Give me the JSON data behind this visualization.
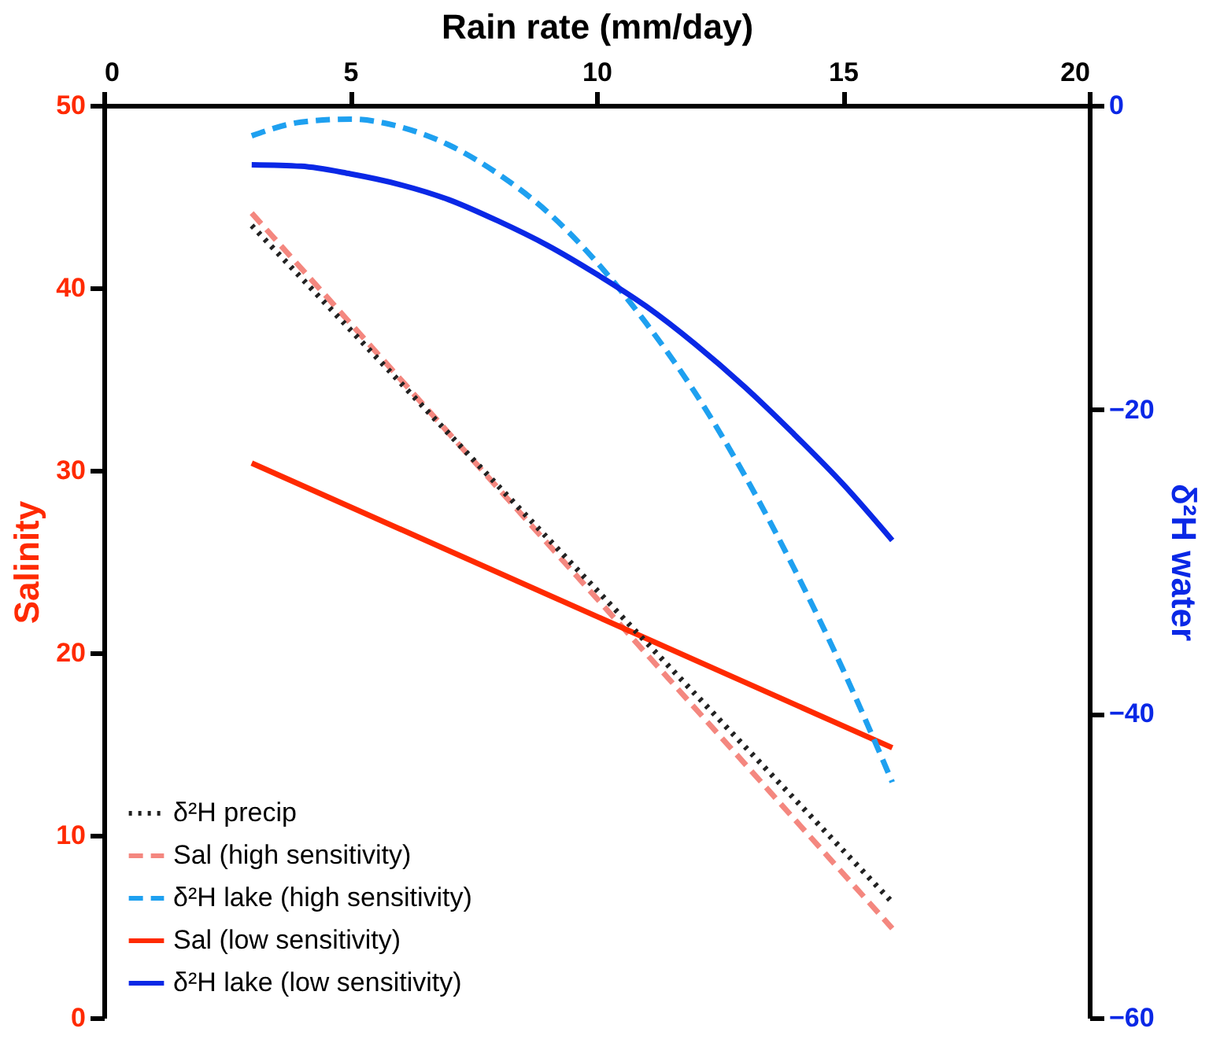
{
  "chart_data": {
    "type": "line",
    "xlabel": "Rain rate (mm/day)",
    "ylabel": "Salinity",
    "y2label": "δ²H water",
    "xlim": [
      0,
      20
    ],
    "xticks": [
      0,
      5,
      10,
      15,
      20
    ],
    "ylim": [
      0,
      50
    ],
    "yticks": [
      0,
      10,
      20,
      30,
      40,
      50
    ],
    "y2lim": [
      -60,
      0
    ],
    "y2ticks": [
      0,
      -20,
      -40,
      -60
    ],
    "grid": false,
    "legend": "bottom left",
    "marker": "none",
    "series": [
      {
        "name": "δ²H precip",
        "color": "#222222",
        "line_style": "dotted",
        "axis": "y2",
        "x": [
          3,
          16
        ],
        "values": [
          -7.9,
          -52.4
        ]
      },
      {
        "name": "Sal (high sensitivity)",
        "color": "#f4877f",
        "line_style": "dashed",
        "axis": "y",
        "x": [
          3,
          16
        ],
        "values": [
          44.1,
          4.9
        ]
      },
      {
        "name": "δ²H lake (high sensitivity)",
        "color": "#1ea0f0",
        "line_style": "dashed",
        "axis": "y2",
        "x": [
          3,
          4,
          5,
          6,
          7,
          8,
          9,
          10,
          11,
          12,
          13,
          14,
          15,
          16
        ],
        "values": [
          -2.0,
          -1.1,
          -0.9,
          -1.4,
          -2.6,
          -4.5,
          -7.0,
          -10.3,
          -14.3,
          -18.9,
          -24.3,
          -30.4,
          -37.1,
          -44.5
        ]
      },
      {
        "name": "Sal (low sensitivity)",
        "color": "#ff2a00",
        "line_style": "solid",
        "axis": "y",
        "x": [
          3,
          16
        ],
        "values": [
          30.4,
          14.8
        ]
      },
      {
        "name": "δ²H lake (low sensitivity)",
        "color": "#0a28e6",
        "line_style": "solid",
        "axis": "y2",
        "x": [
          3,
          4,
          5,
          6,
          7,
          8,
          9,
          10,
          11,
          12,
          13,
          14,
          15,
          16
        ],
        "values": [
          -3.9,
          -4.0,
          -4.5,
          -5.2,
          -6.2,
          -7.6,
          -9.2,
          -11.1,
          -13.2,
          -15.7,
          -18.5,
          -21.6,
          -24.9,
          -28.6
        ]
      }
    ]
  }
}
